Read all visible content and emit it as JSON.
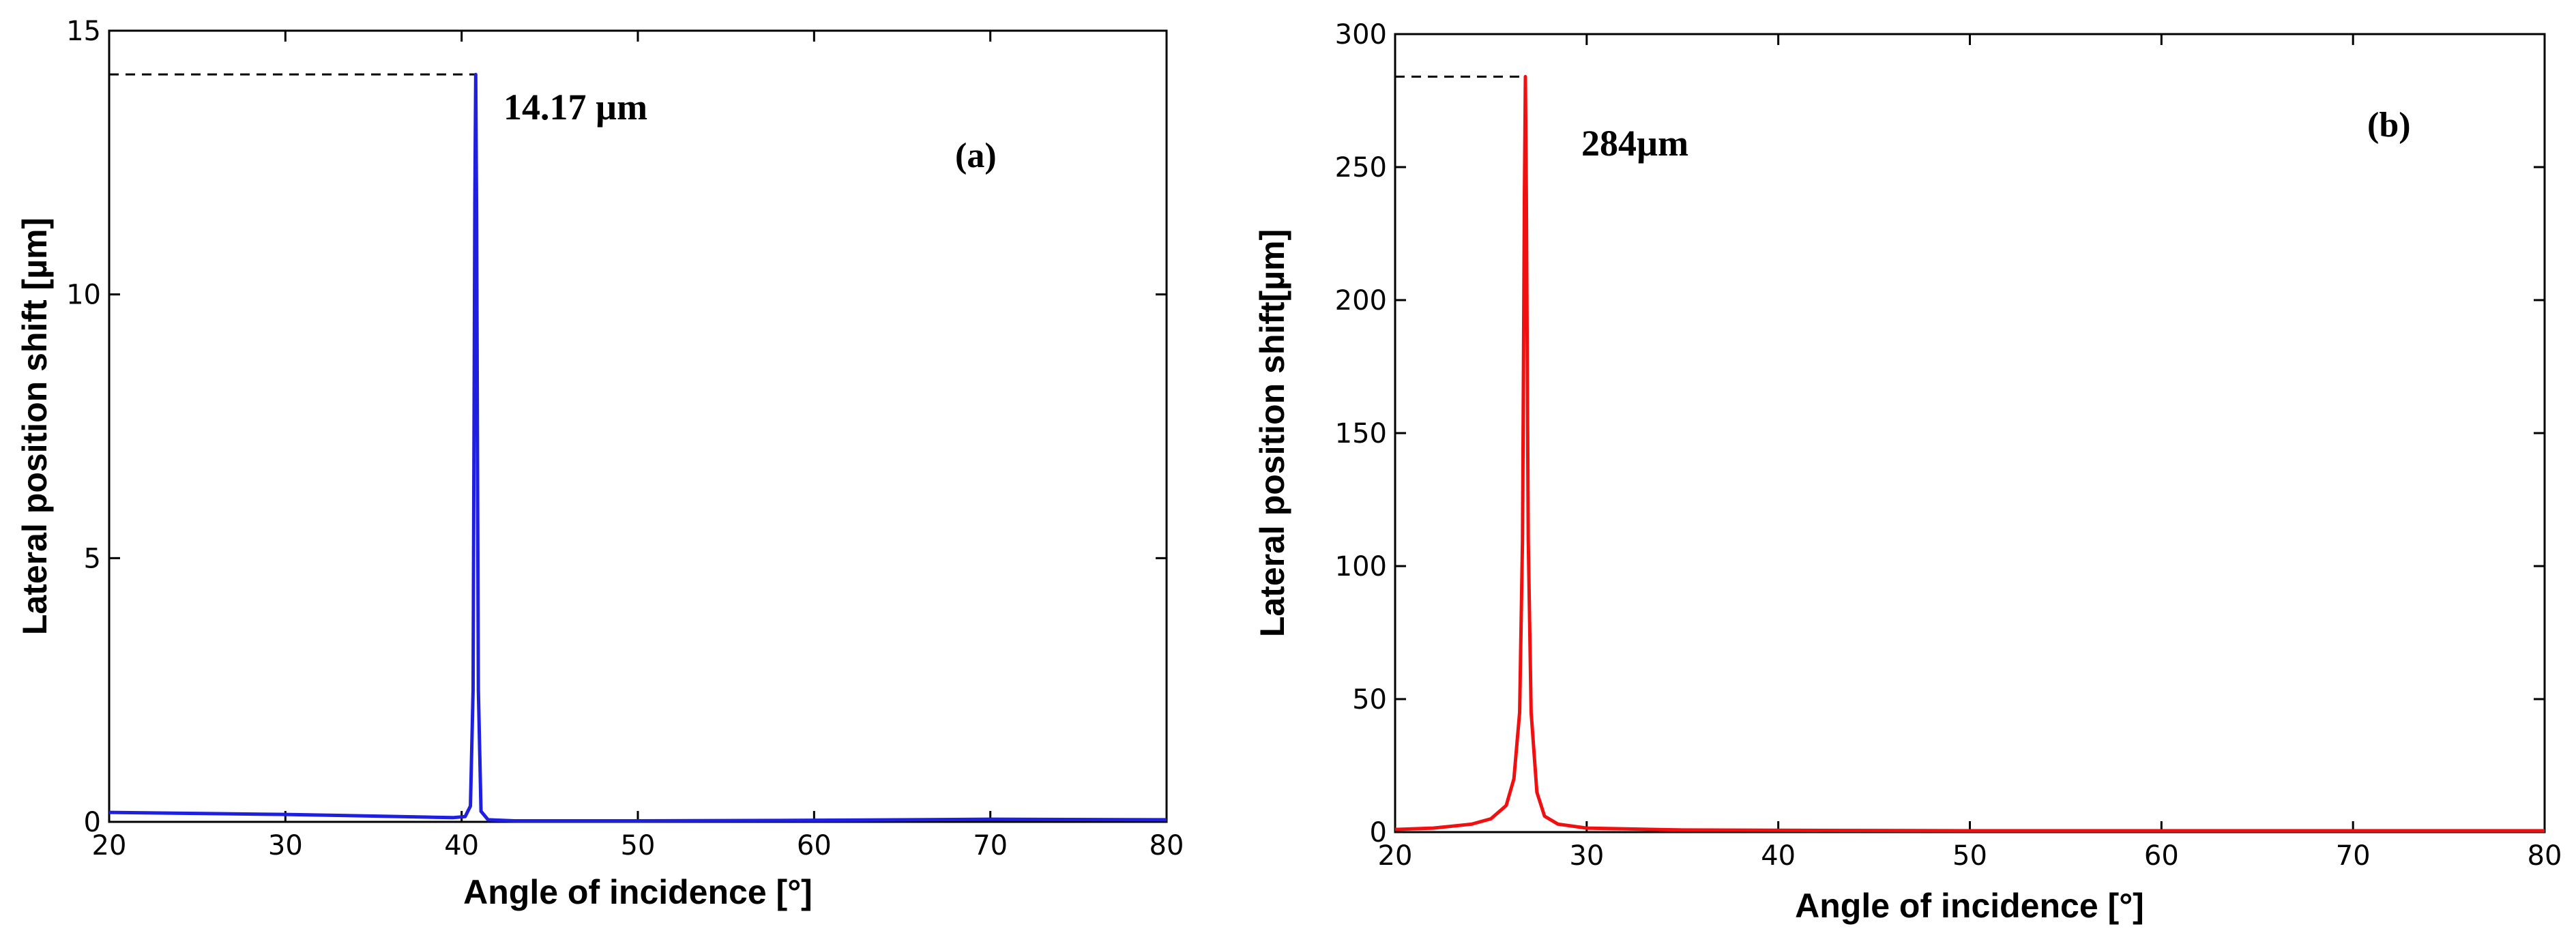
{
  "colors": {
    "series_a": "#1f1fe0",
    "series_b": "#f01010",
    "axes": "#000000",
    "background": "#ffffff"
  },
  "chart_data": [
    {
      "type": "line",
      "panel_label": "(a)",
      "xlabel": "Angle of incidence [°]",
      "ylabel": "Lateral position shift [µm]",
      "xlim": [
        20,
        80
      ],
      "ylim": [
        0,
        15
      ],
      "xticks": [
        20,
        30,
        40,
        50,
        60,
        70,
        80
      ],
      "yticks": [
        0,
        5,
        10,
        15
      ],
      "grid": false,
      "annotation": "14.17 µm",
      "peak": {
        "x": 40.8,
        "y": 14.17
      },
      "series": [
        {
          "color": "#1f1fe0",
          "x": [
            20,
            25,
            30,
            35,
            38,
            39.5,
            40.2,
            40.5,
            40.65,
            40.75,
            40.8,
            40.85,
            40.95,
            41.1,
            41.5,
            43,
            50,
            60,
            70,
            80
          ],
          "y": [
            0.18,
            0.16,
            0.14,
            0.11,
            0.09,
            0.08,
            0.1,
            0.3,
            2.5,
            11.8,
            14.17,
            11.5,
            2.5,
            0.2,
            0.04,
            0.02,
            0.02,
            0.03,
            0.05,
            0.04
          ]
        }
      ]
    },
    {
      "type": "line",
      "panel_label": "(b)",
      "xlabel": "Angle of incidence [°]",
      "ylabel": "Lateral position shift[µm]",
      "xlim": [
        20,
        80
      ],
      "ylim": [
        0,
        300
      ],
      "xticks": [
        20,
        30,
        40,
        50,
        60,
        70,
        80
      ],
      "yticks": [
        0,
        50,
        100,
        150,
        200,
        250,
        300
      ],
      "grid": false,
      "annotation": "284µm",
      "peak": {
        "x": 26.8,
        "y": 284
      },
      "series": [
        {
          "color": "#f01010",
          "x": [
            20,
            22,
            24,
            25,
            25.8,
            26.2,
            26.5,
            26.65,
            26.75,
            26.8,
            26.85,
            26.95,
            27.1,
            27.4,
            27.8,
            28.5,
            30,
            35,
            50,
            80
          ],
          "y": [
            1,
            1.5,
            3,
            5,
            10,
            20,
            45,
            110,
            240,
            284,
            240,
            110,
            45,
            15,
            6,
            3,
            1.5,
            0.8,
            0.5,
            0.5
          ]
        }
      ]
    }
  ]
}
